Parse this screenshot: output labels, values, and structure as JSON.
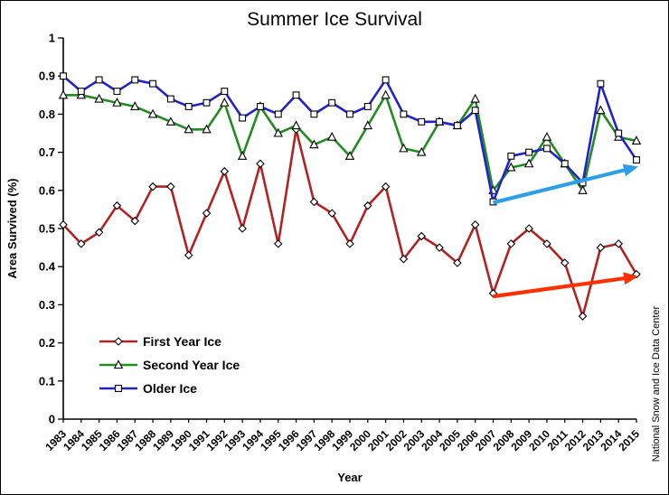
{
  "title": "Summer Ice Survival",
  "xlabel": "Year",
  "ylabel": "Area Survived (%)",
  "watermark": "National Snow and Ice Data Center",
  "chart_data": {
    "type": "line",
    "title": "Summer Ice Survival",
    "xlabel": "Year",
    "ylabel": "Area Survived (%)",
    "ylim": [
      0,
      1
    ],
    "grid": false,
    "legend_position": "inside-lower-left",
    "x": [
      1983,
      1984,
      1985,
      1986,
      1987,
      1988,
      1989,
      1990,
      1991,
      1992,
      1993,
      1994,
      1995,
      1996,
      1997,
      1998,
      1999,
      2000,
      2001,
      2002,
      2003,
      2004,
      2005,
      2006,
      2007,
      2008,
      2009,
      2010,
      2011,
      2012,
      2013,
      2014,
      2015
    ],
    "yticks": [
      [
        0,
        "0"
      ],
      [
        0.1,
        "0.1"
      ],
      [
        0.2,
        "0.2"
      ],
      [
        0.3,
        "0.3"
      ],
      [
        0.4,
        "0.4"
      ],
      [
        0.5,
        "0.5"
      ],
      [
        0.6,
        "0.6"
      ],
      [
        0.7,
        "0.7"
      ],
      [
        0.8,
        "0.8"
      ],
      [
        0.9,
        "0.9"
      ],
      [
        1,
        "1"
      ]
    ],
    "series": [
      {
        "name": "First Year Ice",
        "color": "#B22222",
        "marker": "diamond",
        "values": [
          0.51,
          0.46,
          0.49,
          0.56,
          0.52,
          0.61,
          0.61,
          0.43,
          0.54,
          0.65,
          0.5,
          0.67,
          0.46,
          0.76,
          0.57,
          0.54,
          0.46,
          0.56,
          0.61,
          0.42,
          0.48,
          0.45,
          0.41,
          0.51,
          0.33,
          0.46,
          0.5,
          0.46,
          0.41,
          0.27,
          0.45,
          0.46,
          0.38
        ]
      },
      {
        "name": "Second Year Ice",
        "color": "#228B22",
        "marker": "triangle",
        "values": [
          0.85,
          0.85,
          0.84,
          0.83,
          0.82,
          0.8,
          0.78,
          0.76,
          0.76,
          0.83,
          0.69,
          0.82,
          0.75,
          0.77,
          0.72,
          0.74,
          0.69,
          0.77,
          0.85,
          0.71,
          0.7,
          0.78,
          0.77,
          0.84,
          0.6,
          0.66,
          0.67,
          0.74,
          0.67,
          0.6,
          0.81,
          0.74,
          0.73
        ]
      },
      {
        "name": "Older Ice",
        "color": "#2222CC",
        "marker": "square",
        "values": [
          0.9,
          0.86,
          0.89,
          0.86,
          0.89,
          0.88,
          0.84,
          0.82,
          0.83,
          0.86,
          0.79,
          0.82,
          0.8,
          0.85,
          0.8,
          0.83,
          0.8,
          0.82,
          0.89,
          0.8,
          0.78,
          0.78,
          0.77,
          0.81,
          0.57,
          0.69,
          0.7,
          0.71,
          0.67,
          0.62,
          0.88,
          0.75,
          0.68
        ]
      }
    ],
    "annotations": [
      {
        "type": "trend-arrow",
        "series": "First Year Ice",
        "color": "#FF3000",
        "x1": 2007,
        "y1": 0.322,
        "x2": 2014.9,
        "y2": 0.373
      },
      {
        "type": "trend-arrow",
        "series": "Older Ice",
        "color": "#2D9FE8",
        "x1": 2007,
        "y1": 0.568,
        "x2": 2014.9,
        "y2": 0.66
      }
    ]
  }
}
